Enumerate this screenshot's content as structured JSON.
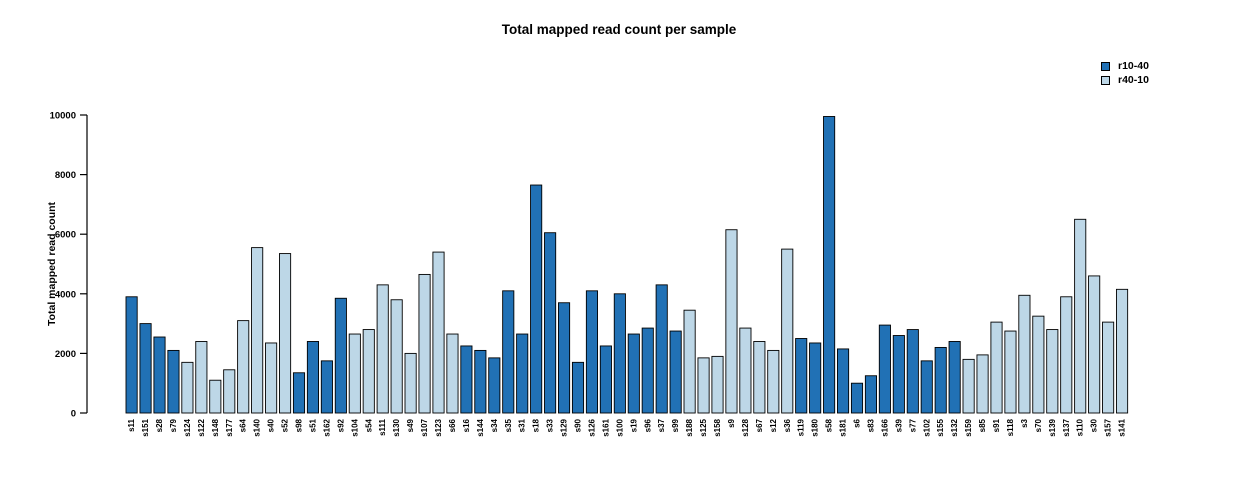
{
  "page": {
    "background": "#ffffff"
  },
  "chart_data": {
    "type": "bar",
    "title": "Total mapped read count per sample",
    "xlabel": "",
    "ylabel": "Total mapped read count",
    "ylim": [
      0,
      10000
    ],
    "yticks": [
      0,
      2000,
      4000,
      6000,
      8000,
      10000
    ],
    "grid": false,
    "legend_position": "top-right",
    "bar_outline_color": "#000000",
    "series": [
      {
        "name": "r10-40",
        "color": "#2171b5"
      },
      {
        "name": "r40-10",
        "color": "#bdd7e7"
      }
    ],
    "categories": [
      "s11",
      "s151",
      "s28",
      "s79",
      "s124",
      "s122",
      "s148",
      "s177",
      "s64",
      "s140",
      "s40",
      "s52",
      "s98",
      "s51",
      "s162",
      "s92",
      "s104",
      "s54",
      "s111",
      "s130",
      "s49",
      "s107",
      "s123",
      "s66",
      "s16",
      "s144",
      "s34",
      "s35",
      "s31",
      "s18",
      "s33",
      "s129",
      "s90",
      "s126",
      "s161",
      "s100",
      "s19",
      "s96",
      "s37",
      "s99",
      "s188",
      "s125",
      "s158",
      "s9",
      "s128",
      "s67",
      "s12",
      "s36",
      "s119",
      "s180",
      "s58",
      "s181",
      "s6",
      "s83",
      "s166",
      "s39",
      "s77",
      "s102",
      "s155",
      "s132",
      "s159",
      "s85",
      "s91",
      "s118",
      "s3",
      "s70",
      "s139",
      "s137",
      "s110",
      "s30",
      "s157",
      "s141"
    ],
    "values": [
      3900,
      3000,
      2550,
      2100,
      1700,
      2400,
      1100,
      1450,
      3100,
      5550,
      2350,
      5350,
      1350,
      2400,
      1750,
      3850,
      2650,
      2800,
      4300,
      3800,
      2000,
      4650,
      5400,
      2650,
      2250,
      2100,
      1850,
      4100,
      2650,
      7650,
      6050,
      3700,
      1700,
      4100,
      2250,
      4000,
      2650,
      2850,
      4300,
      2750,
      3450,
      1850,
      1900,
      6150,
      2850,
      2400,
      2100,
      5500,
      2500,
      2350,
      9950,
      2150,
      1000,
      1250,
      2950,
      2600,
      2800,
      1750,
      2200,
      2400,
      1800,
      1950,
      3050,
      2750,
      3950,
      3250,
      2800,
      3900,
      6500,
      4600,
      3050,
      4150
    ],
    "bar_series": [
      0,
      0,
      0,
      0,
      1,
      1,
      1,
      1,
      1,
      1,
      1,
      1,
      0,
      0,
      0,
      0,
      1,
      1,
      1,
      1,
      1,
      1,
      1,
      1,
      0,
      0,
      0,
      0,
      0,
      0,
      0,
      0,
      0,
      0,
      0,
      0,
      0,
      0,
      0,
      0,
      1,
      1,
      1,
      1,
      1,
      1,
      1,
      1,
      0,
      0,
      0,
      0,
      0,
      0,
      0,
      0,
      0,
      0,
      0,
      0,
      1,
      1,
      1,
      1,
      1,
      1,
      1,
      1,
      1,
      1,
      1,
      1
    ]
  }
}
